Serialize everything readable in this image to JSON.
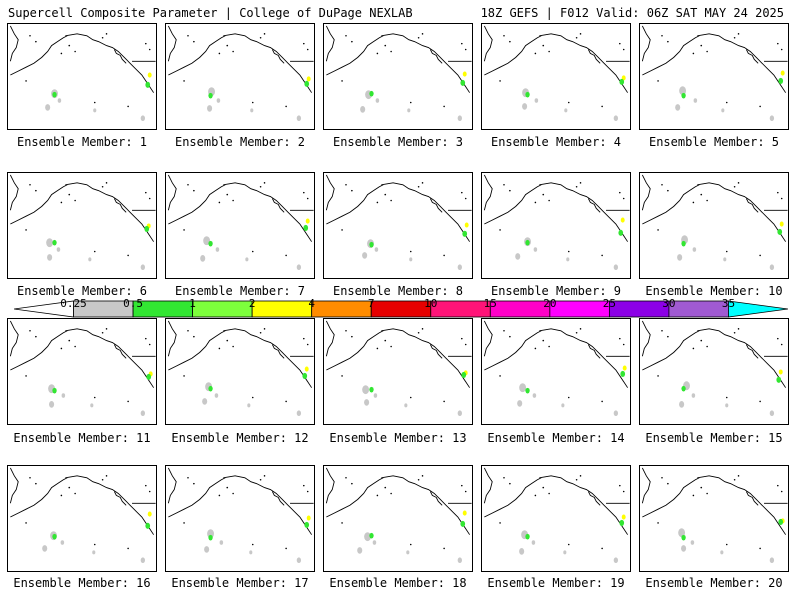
{
  "header": {
    "title_left": "Supercell Composite Parameter | College of DuPage NEXLAB",
    "title_right": "18Z GEFS | F012 Valid: 06Z SAT MAY 24 2025"
  },
  "panels": [
    {
      "member": 1,
      "label": "Ensemble Member: 1"
    },
    {
      "member": 2,
      "label": "Ensemble Member: 2"
    },
    {
      "member": 3,
      "label": "Ensemble Member: 3"
    },
    {
      "member": 4,
      "label": "Ensemble Member: 4"
    },
    {
      "member": 5,
      "label": "Ensemble Member: 5"
    },
    {
      "member": 6,
      "label": "Ensemble Member: 6"
    },
    {
      "member": 7,
      "label": "Ensemble Member: 7"
    },
    {
      "member": 8,
      "label": "Ensemble Member: 8"
    },
    {
      "member": 9,
      "label": "Ensemble Member: 9"
    },
    {
      "member": 10,
      "label": "Ensemble Member: 10"
    },
    {
      "member": 11,
      "label": "Ensemble Member: 11"
    },
    {
      "member": 12,
      "label": "Ensemble Member: 12"
    },
    {
      "member": 13,
      "label": "Ensemble Member: 13"
    },
    {
      "member": 14,
      "label": "Ensemble Member: 14"
    },
    {
      "member": 15,
      "label": "Ensemble Member: 15"
    },
    {
      "member": 16,
      "label": "Ensemble Member: 16"
    },
    {
      "member": 17,
      "label": "Ensemble Member: 17"
    },
    {
      "member": 18,
      "label": "Ensemble Member: 18"
    },
    {
      "member": 19,
      "label": "Ensemble Member: 19"
    },
    {
      "member": 20,
      "label": "Ensemble Member: 20"
    }
  ],
  "colorbar": {
    "labels": [
      "0.25",
      "0.5",
      "1",
      "2",
      "4",
      "7",
      "10",
      "15",
      "20",
      "25",
      "30",
      "35"
    ],
    "colors": [
      "#ffffff",
      "#c8c8c8",
      "#32e632",
      "#7dff3c",
      "#ffff00",
      "#ff8c00",
      "#e60000",
      "#ff1478",
      "#ff00c8",
      "#ff00ff",
      "#8c00e6",
      "#a05ad2",
      "#00ffff"
    ]
  },
  "map": {
    "land_color": "#ffffff",
    "outline_color": "#000000",
    "low_color": "#c8c8c8",
    "mid_color": "#32e632",
    "high_color": "#ffff00"
  }
}
